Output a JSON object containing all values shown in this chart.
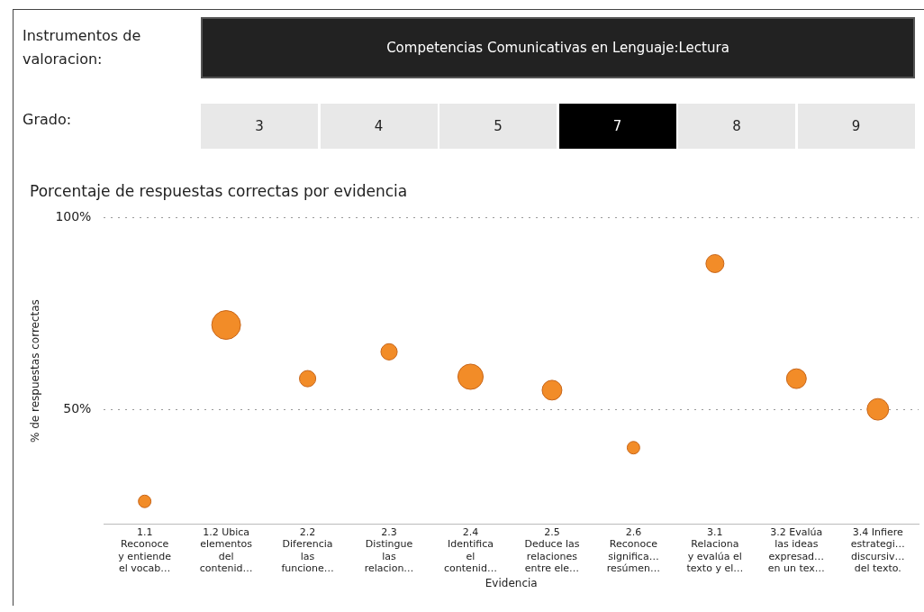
{
  "chart_data": {
    "type": "bubble",
    "title": "Porcentaje de respuestas correctas por evidencia",
    "xlabel": "Evidencia",
    "ylabel": "% de respuestas correctas",
    "annotations": [
      "Instrumentos de valoracion:",
      "Competencias Comunicativas en Lenguaje:Lectura",
      "Grado:",
      "3",
      "4",
      "5",
      "7",
      "8",
      "9"
    ],
    "categories": [
      "1.1\nReconoce\ny entiende\nel vocab…",
      "1.2 Ubica\nelementos\ndel\ncontenid…",
      "2.2\nDiferencia\nlas\nfuncione…",
      "2.3\nDistingue\nlas\nrelacion…",
      "2.4\nIdentifica\nel\ncontenid…",
      "2.5\nDeduce las\nrelaciones\nentre ele…",
      "2.6\nReconoce\nsignifica…\nresúmen…",
      "3.1\nRelaciona\ny evalúa el\ntexto y el…",
      "3.2 Evalúa\nlas ideas\nexpresad…\nen un tex…",
      "3.4 Infiere\nestrategi…\ndiscursiv…\ndel texto."
    ],
    "values": [
      26,
      72,
      58,
      65,
      58.5,
      55,
      40,
      88,
      58,
      50
    ],
    "sizes": [
      0.19,
      1,
      0.32,
      0.32,
      0.77,
      0.47,
      0.19,
      0.39,
      0.47,
      0.56
    ],
    "color": "#f28c28",
    "ylim": [
      20,
      100
    ],
    "yticks": [
      {
        "value": 50,
        "label": "50%"
      },
      {
        "value": 100,
        "label": "100%"
      }
    ],
    "grid": "y",
    "legend": false
  }
}
